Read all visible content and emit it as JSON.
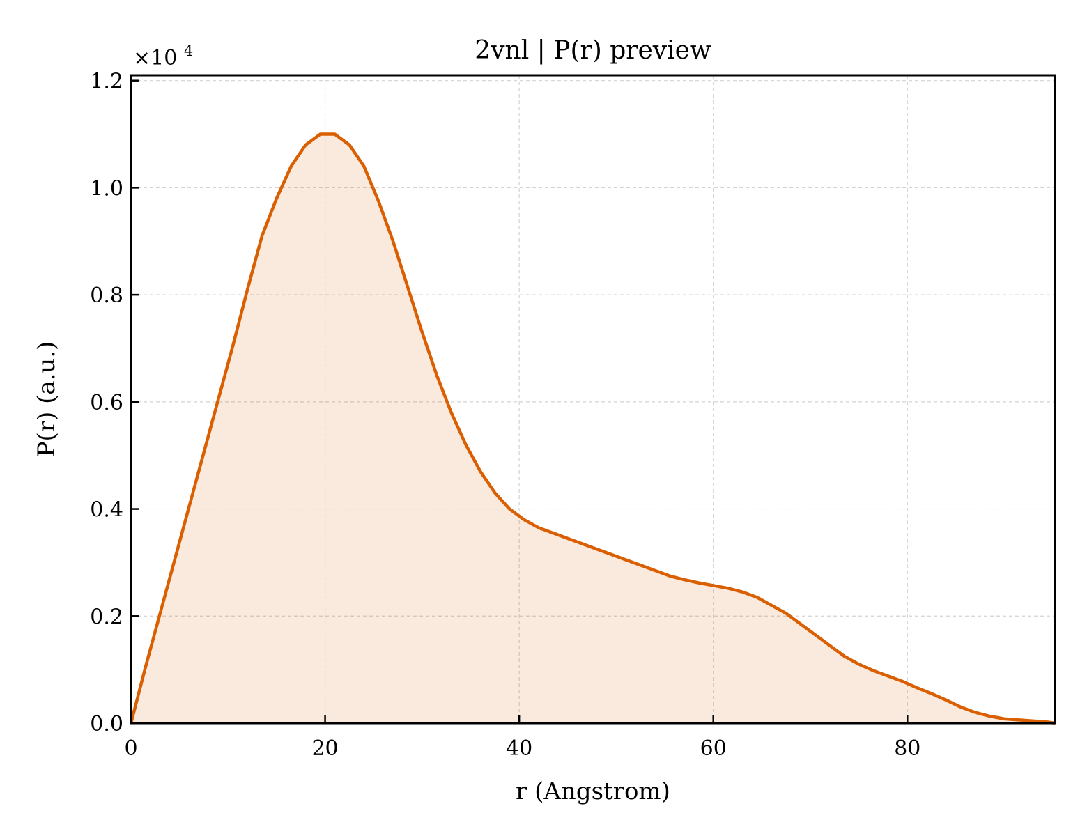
{
  "chart_data": {
    "type": "area",
    "title": "2vnl | P(r) preview",
    "xlabel": "r (Angstrom)",
    "ylabel": "P(r) (a.u.)",
    "y_offset_text": "×10",
    "y_offset_exponent": "4",
    "y_scale_factor": 10000,
    "xlim": [
      0,
      95.2
    ],
    "ylim": [
      0,
      12100
    ],
    "x_ticks": [
      0,
      20,
      40,
      60,
      80
    ],
    "y_ticks": [
      0,
      2000,
      4000,
      6000,
      8000,
      10000,
      12000
    ],
    "x_tick_labels": [
      "0",
      "20",
      "40",
      "60",
      "80"
    ],
    "y_tick_labels": [
      "0.0",
      "0.2",
      "0.4",
      "0.6",
      "0.8",
      "1.0",
      "1.2"
    ],
    "grid": true,
    "series": [
      {
        "color": "#d95f02",
        "fill_color": "#d95f02",
        "fill_opacity": 0.13,
        "x": [
          0,
          1.5,
          3,
          4.5,
          6,
          7.5,
          9,
          10.5,
          12,
          13.5,
          15,
          16.5,
          18,
          19.5,
          21,
          22.5,
          24,
          25.5,
          27,
          28.5,
          30,
          31.5,
          33,
          34.5,
          36,
          37.5,
          39,
          40.5,
          42,
          43.5,
          45,
          46.5,
          48,
          49.5,
          51,
          52.5,
          54,
          55.5,
          57,
          58.5,
          60,
          61.5,
          63,
          64.5,
          66,
          67.5,
          69,
          70.5,
          72,
          73.5,
          75,
          76.5,
          78,
          79.5,
          81,
          82.5,
          84,
          85.5,
          87,
          88.5,
          90,
          91.5,
          93,
          94.5,
          95.2
        ],
        "y": [
          0,
          1050,
          2050,
          3050,
          4050,
          5050,
          6050,
          7050,
          8100,
          9100,
          9800,
          10400,
          10800,
          11000,
          11000,
          10800,
          10400,
          9750,
          9000,
          8150,
          7300,
          6500,
          5800,
          5200,
          4700,
          4300,
          4000,
          3800,
          3650,
          3550,
          3450,
          3350,
          3250,
          3150,
          3050,
          2950,
          2850,
          2750,
          2680,
          2620,
          2570,
          2520,
          2450,
          2350,
          2200,
          2050,
          1850,
          1650,
          1450,
          1250,
          1100,
          980,
          880,
          780,
          660,
          550,
          430,
          300,
          200,
          130,
          80,
          60,
          40,
          20,
          0
        ]
      }
    ]
  }
}
